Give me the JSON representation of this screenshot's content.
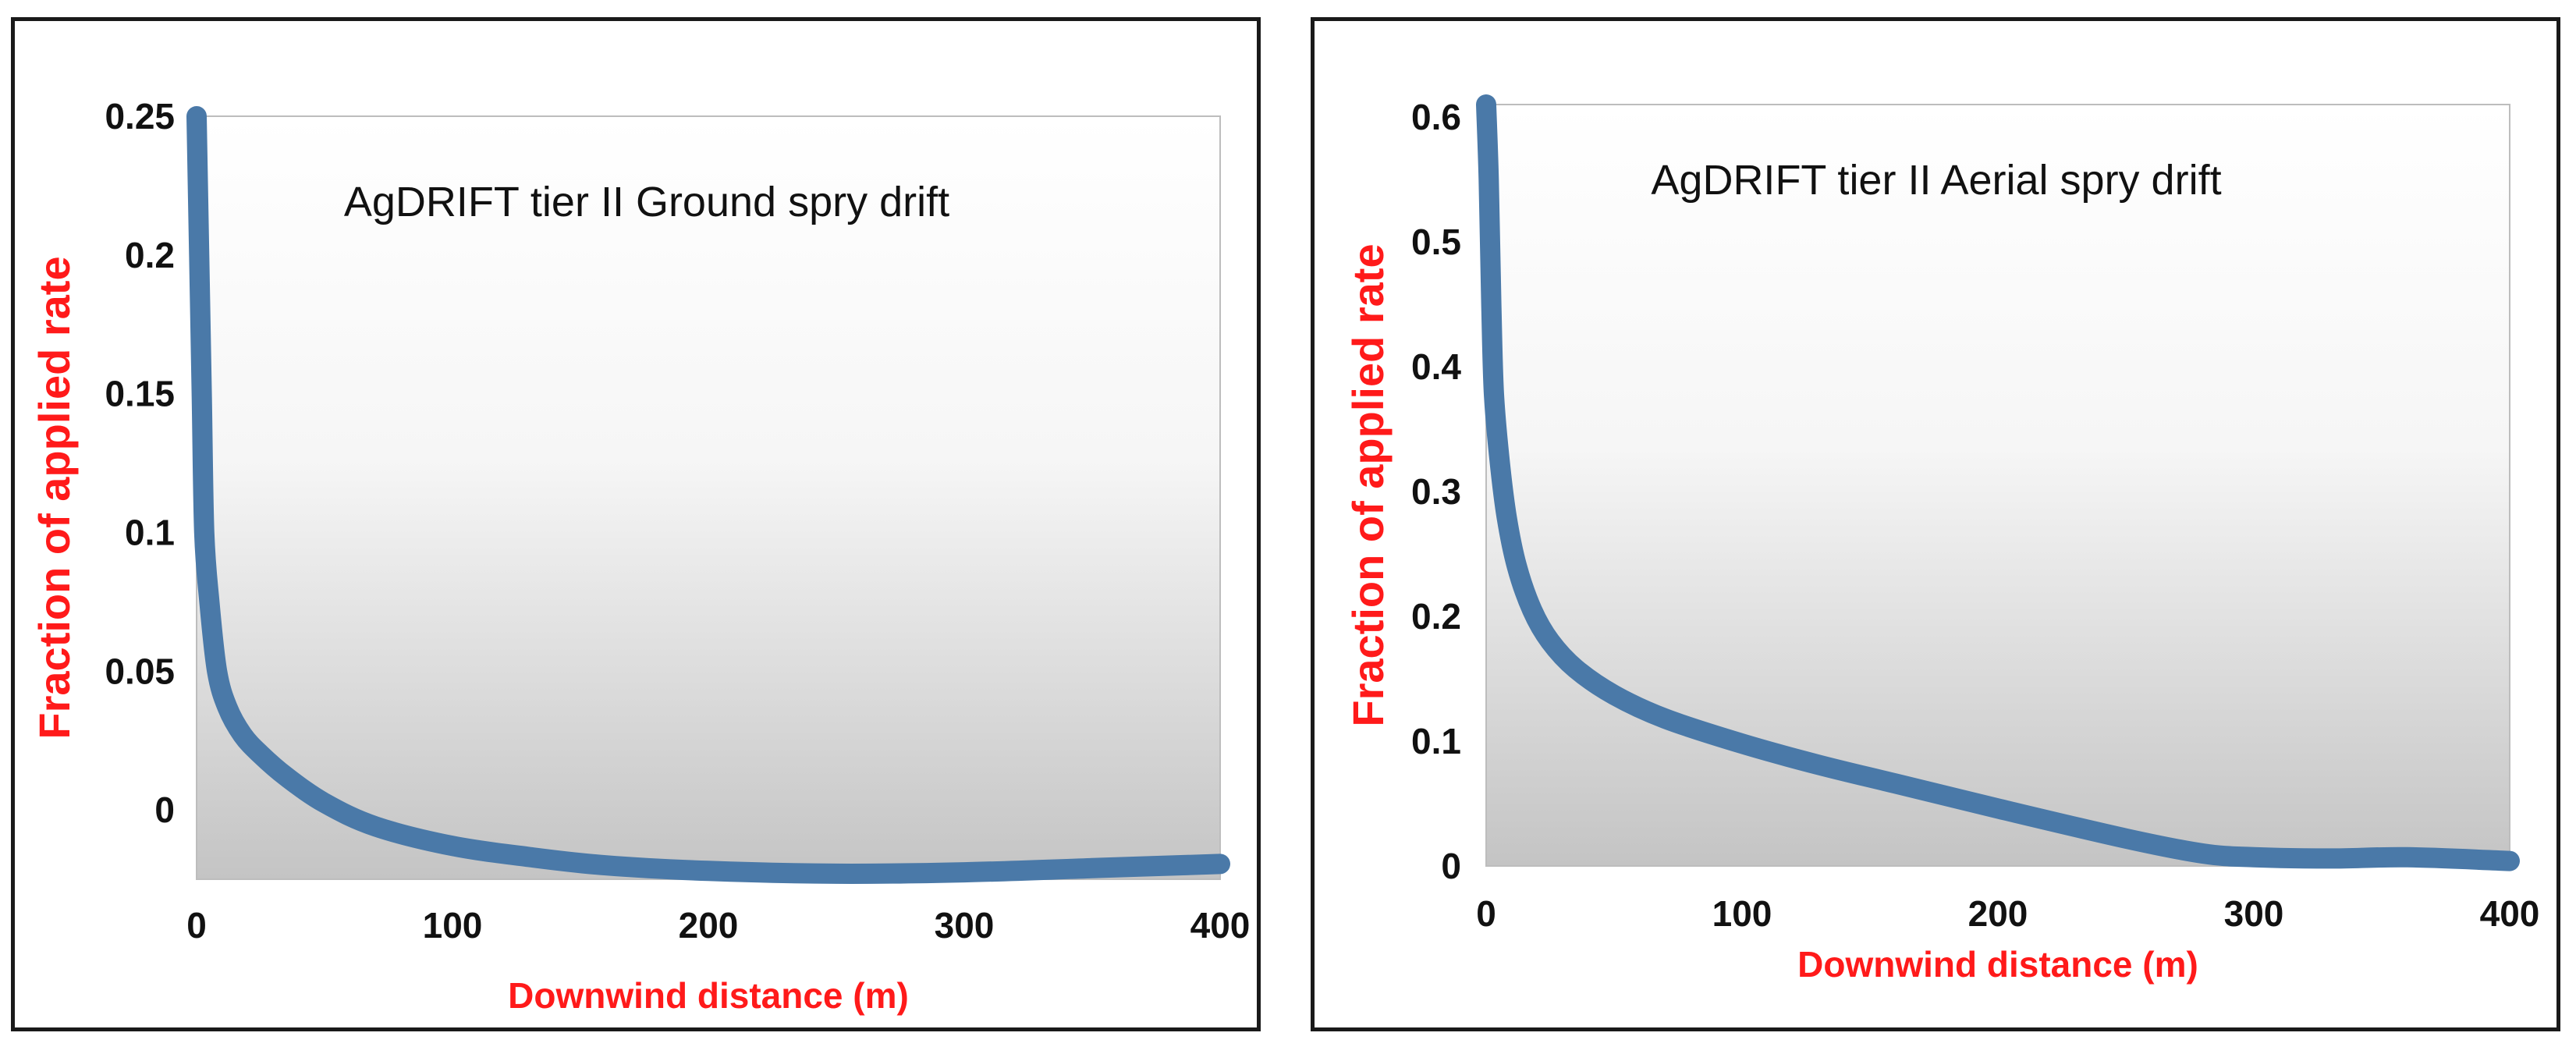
{
  "chart_data": [
    {
      "type": "line",
      "title": "AgDRIFT tier II Ground spry drift",
      "xlabel": "Downwind distance (m)",
      "ylabel": "Fraction of applied rate",
      "x_ticks": [
        "0",
        "100",
        "200",
        "300",
        "400"
      ],
      "y_ticks": [
        "0.25",
        "0.2",
        "0.15",
        "0.1",
        "0.05",
        "0"
      ],
      "x_tick_values": [
        0,
        100,
        200,
        300,
        400
      ],
      "y_tick_values": [
        0.25,
        0.2,
        0.15,
        0.1,
        0.05,
        0
      ],
      "xlim": [
        0,
        400
      ],
      "ylim": [
        -0.025,
        0.25
      ],
      "grid": false,
      "legend": "none",
      "line_color": "#4a79a8",
      "series": [
        {
          "x": [
            0,
            1,
            2,
            3,
            5,
            8,
            12,
            18,
            25,
            35,
            50,
            70,
            100,
            130,
            160,
            200,
            250,
            300,
            350,
            400
          ],
          "y": [
            0.25,
            0.2,
            0.15,
            0.1,
            0.075,
            0.05,
            0.037,
            0.027,
            0.02,
            0.012,
            0.0025,
            -0.006,
            -0.013,
            -0.017,
            -0.02,
            -0.022,
            -0.023,
            -0.0225,
            -0.021,
            -0.0195
          ]
        }
      ]
    },
    {
      "type": "line",
      "title": "AgDRIFT tier II Aerial spry drift",
      "xlabel": "Downwind distance (m)",
      "ylabel": "Fraction of applied rate",
      "x_ticks": [
        "0",
        "100",
        "200",
        "300",
        "400"
      ],
      "y_ticks": [
        "0.6",
        "0.5",
        "0.4",
        "0.3",
        "0.2",
        "0.1",
        "0"
      ],
      "x_tick_values": [
        0,
        100,
        200,
        300,
        400
      ],
      "y_tick_values": [
        0.6,
        0.5,
        0.4,
        0.3,
        0.2,
        0.1,
        0
      ],
      "xlim": [
        0,
        400
      ],
      "ylim": [
        0,
        0.61
      ],
      "grid": false,
      "legend": "none",
      "line_color": "#4a79a8",
      "series": [
        {
          "x": [
            0,
            1,
            2,
            3,
            5,
            8,
            12,
            18,
            25,
            35,
            50,
            70,
            100,
            130,
            160,
            200,
            250,
            280,
            300,
            330,
            360,
            400
          ],
          "y": [
            0.61,
            0.55,
            0.45,
            0.38,
            0.33,
            0.28,
            0.24,
            0.205,
            0.18,
            0.158,
            0.137,
            0.118,
            0.098,
            0.081,
            0.066,
            0.046,
            0.022,
            0.01,
            0.007,
            0.006,
            0.007,
            0.004
          ]
        }
      ]
    }
  ]
}
